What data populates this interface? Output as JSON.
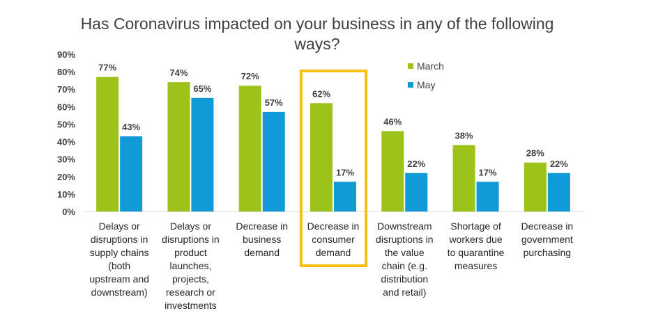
{
  "chart_data": {
    "type": "bar",
    "title": "Has Coronavirus impacted on your business in any of the following ways?",
    "categories": [
      "Delays or disruptions in supply chains (both upstream and downstream)",
      "Delays or disruptions in product launches, projects, research or investments",
      "Decrease in business demand",
      "Decrease in consumer demand",
      "Downstream disruptions in the value chain (e.g. distribution and retail)",
      "Shortage of workers due to quarantine measures",
      "Decrease in government purchasing"
    ],
    "category_lines": [
      [
        "Delays or",
        "disruptions in",
        "supply chains",
        "(both",
        "upstream and",
        "downstream)"
      ],
      [
        "Delays or",
        "disruptions in",
        "product",
        "launches,",
        "projects,",
        "research or",
        "investments"
      ],
      [
        "Decrease in",
        "business",
        "demand"
      ],
      [
        "Decrease in",
        "consumer",
        "demand"
      ],
      [
        "Downstream",
        "disruptions in",
        "the value",
        "chain (e.g.",
        "distribution",
        "and retail)"
      ],
      [
        "Shortage of",
        "workers due",
        "to quarantine",
        "measures"
      ],
      [
        "Decrease in",
        "government",
        "purchasing"
      ]
    ],
    "series": [
      {
        "name": "March",
        "values": [
          77,
          74,
          72,
          62,
          46,
          38,
          28
        ],
        "color": "#9dc21a"
      },
      {
        "name": "May",
        "values": [
          43,
          65,
          57,
          17,
          22,
          17,
          22
        ],
        "color": "#109ad7"
      }
    ],
    "value_suffix": "%",
    "ylim": [
      0,
      90
    ],
    "yticks": [
      0,
      10,
      20,
      30,
      40,
      50,
      60,
      70,
      80,
      90
    ],
    "xlabel": "",
    "ylabel": "",
    "grid": false,
    "legend_position": "top-right",
    "highlighted_category": 3,
    "highlight_color": "#f5bf14"
  }
}
